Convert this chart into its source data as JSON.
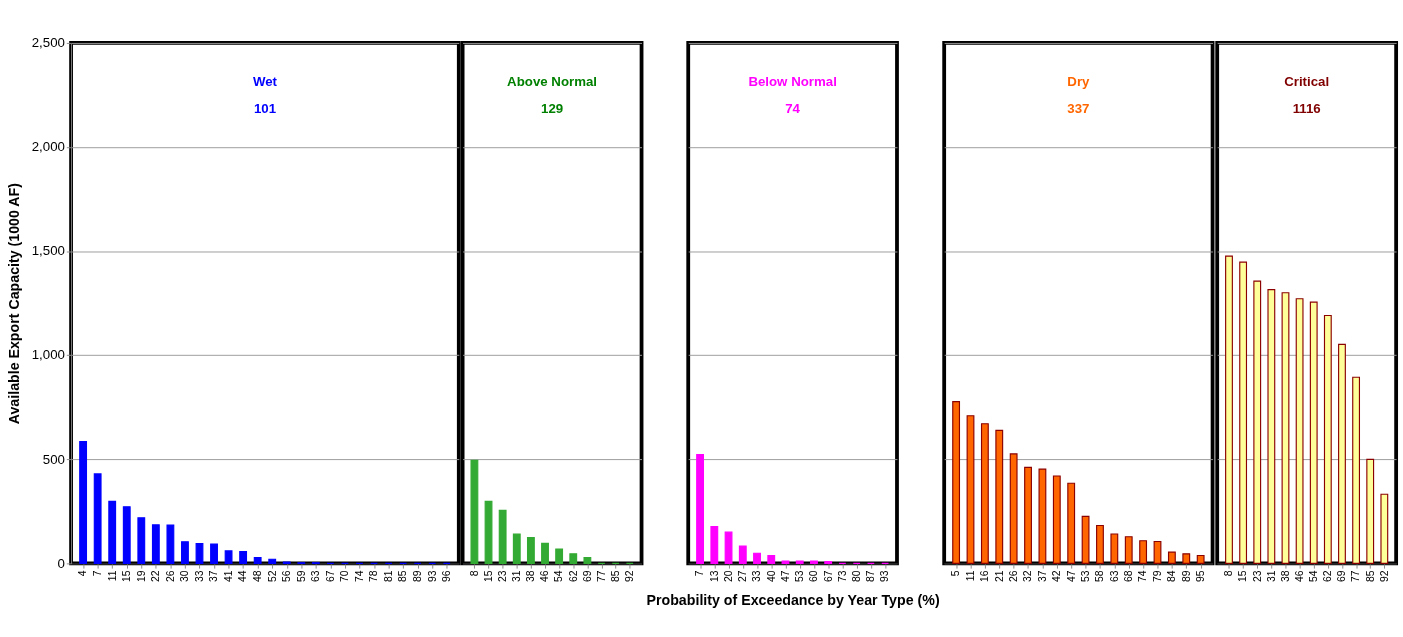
{
  "chart_data": [
    {
      "type": "bar",
      "title": "Wet",
      "subtitle": "101",
      "ylabel": "Available Export Capacity (1000 AF)",
      "color": "#0000ff",
      "grid": "y",
      "ylim": [
        0,
        2500
      ],
      "yticks": [
        0,
        {
          "value": 500,
          "label": "500"
        },
        {
          "value": 1000,
          "label": "1,000"
        },
        {
          "value": 1500,
          "label": "1,500"
        },
        {
          "value": 2000,
          "label": "2,000"
        },
        {
          "value": 2500,
          "label": "2,500"
        }
      ],
      "categories": [
        "4",
        "7",
        "11",
        "15",
        "19",
        "22",
        "26",
        "30",
        "33",
        "37",
        "41",
        "44",
        "48",
        "52",
        "56",
        "59",
        "63",
        "67",
        "70",
        "74",
        "78",
        "81",
        "85",
        "89",
        "93",
        "96"
      ],
      "values": [
        585,
        430,
        298,
        272,
        219,
        185,
        184,
        104,
        95,
        93,
        60,
        57,
        28,
        20,
        6,
        3,
        3,
        0,
        0,
        0,
        0,
        0,
        0,
        0,
        0,
        0
      ]
    },
    {
      "type": "bar",
      "title": "Above Normal",
      "subtitle": "129",
      "color": "#33aa33",
      "grid": "y",
      "tick_labels": "x",
      "ylim": [
        0,
        2500
      ],
      "yticks": [
        0,
        500,
        1000,
        1500,
        2000,
        2500
      ],
      "categories": [
        "8",
        "15",
        "23",
        "31",
        "38",
        "46",
        "54",
        "62",
        "69",
        "77",
        "85",
        "92"
      ],
      "values": [
        495,
        298,
        255,
        141,
        124,
        96,
        69,
        46,
        28,
        0,
        0,
        0
      ]
    },
    {
      "type": "bar",
      "title": "Below Normal",
      "subtitle": "74",
      "xlabel": "Probability of Exceedance by Year Type (%)",
      "color": "#ff00ff",
      "grid": "y",
      "tick_labels": "x",
      "ylim": [
        0,
        2500
      ],
      "yticks": [
        0,
        500,
        1000,
        1500,
        2000,
        2500
      ],
      "categories": [
        "7",
        "13",
        "20",
        "27",
        "33",
        "40",
        "47",
        "53",
        "60",
        "67",
        "73",
        "80",
        "87",
        "93"
      ],
      "values": [
        523,
        177,
        150,
        83,
        49,
        37,
        11,
        11,
        11,
        9,
        0,
        0,
        0,
        0
      ]
    },
    {
      "type": "bar",
      "title": "Dry",
      "subtitle": "337",
      "color": "#ff6600",
      "grid": "y",
      "tick_labels": "x",
      "ylim": [
        0,
        2500
      ],
      "yticks": [
        0,
        500,
        1000,
        1500,
        2000,
        2500
      ],
      "categories": [
        "5",
        "11",
        "16",
        "21",
        "26",
        "32",
        "37",
        "42",
        "47",
        "53",
        "58",
        "63",
        "68",
        "74",
        "79",
        "84",
        "89",
        "95"
      ],
      "values": [
        777,
        709,
        671,
        639,
        526,
        461,
        453,
        420,
        385,
        226,
        182,
        141,
        128,
        109,
        105,
        54,
        46,
        38
      ]
    },
    {
      "type": "bar",
      "title": "Critical",
      "subtitle": "1116",
      "color": "#ffff99",
      "grid": "y",
      "tick_labels": "x",
      "ylim": [
        0,
        2500
      ],
      "yticks": [
        0,
        500,
        1000,
        1500,
        2000,
        2500
      ],
      "categories": [
        "8",
        "15",
        "23",
        "31",
        "38",
        "46",
        "54",
        "62",
        "69",
        "77",
        "85",
        "92"
      ],
      "values": [
        1476,
        1447,
        1356,
        1315,
        1300,
        1271,
        1255,
        1191,
        1052,
        894,
        500,
        332
      ]
    }
  ]
}
